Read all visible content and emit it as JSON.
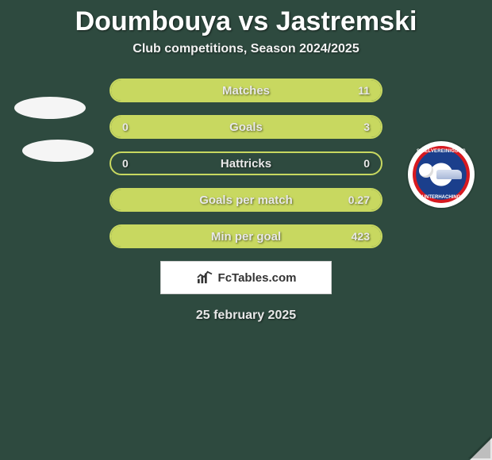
{
  "title": "Doumbouya vs Jastremski",
  "subtitle": "Club competitions, Season 2024/2025",
  "rows": [
    {
      "label": "Matches",
      "left": "",
      "right": "11",
      "fill_side": "right",
      "fill_pct": 100
    },
    {
      "label": "Goals",
      "left": "0",
      "right": "3",
      "fill_side": "right",
      "fill_pct": 100
    },
    {
      "label": "Hattricks",
      "left": "0",
      "right": "0",
      "fill_side": "none",
      "fill_pct": 0
    },
    {
      "label": "Goals per match",
      "left": "",
      "right": "0.27",
      "fill_side": "right",
      "fill_pct": 100
    },
    {
      "label": "Min per goal",
      "left": "",
      "right": "423",
      "fill_side": "right",
      "fill_pct": 100
    }
  ],
  "brand_text": "FcTables.com",
  "date": "25 february 2025",
  "club_text_top": "SPIELVEREINIGUNG",
  "club_text_bottom": "UNTERHACHING",
  "colors": {
    "bg": "#2e4a3f",
    "bar_border": "#c8d860",
    "bar_fill": "#c8d860",
    "text": "#e8e8e8",
    "title": "#ffffff",
    "brand_bg": "#ffffff",
    "brand_text": "#333333"
  }
}
